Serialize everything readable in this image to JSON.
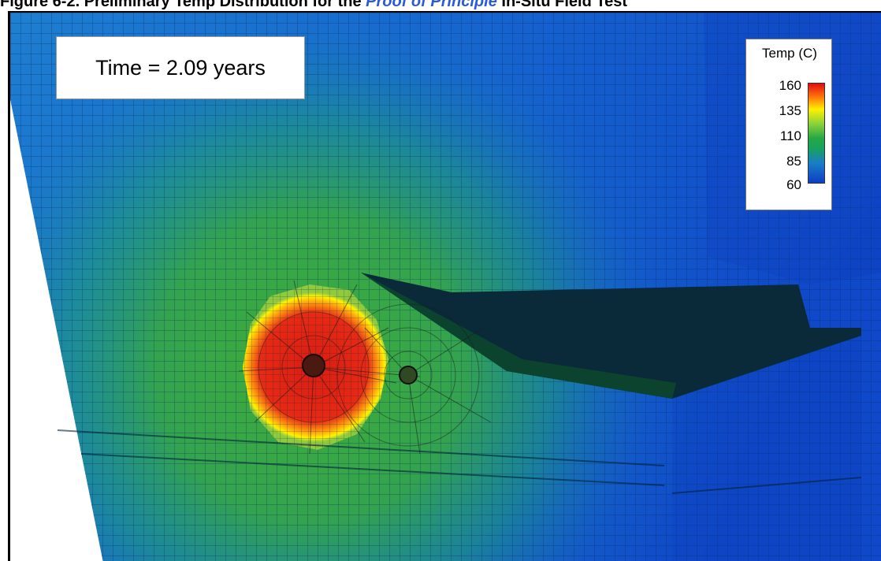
{
  "caption": {
    "part1": "Figure 6-2. Preliminary Temp Distribution for the ",
    "part2": "Proof of Principle",
    "part3": " In-Situ Field Test"
  },
  "time_label": "Time = 2.09 years",
  "legend": {
    "title": "Temp (C)",
    "ticks": [
      "160",
      "135",
      "110",
      "85",
      "60"
    ],
    "colors": {
      "max": "#e00c10",
      "upper": "#fff000",
      "mid": "#27a844",
      "lower": "#1a7dc6",
      "min": "#0d3fc4"
    }
  }
}
